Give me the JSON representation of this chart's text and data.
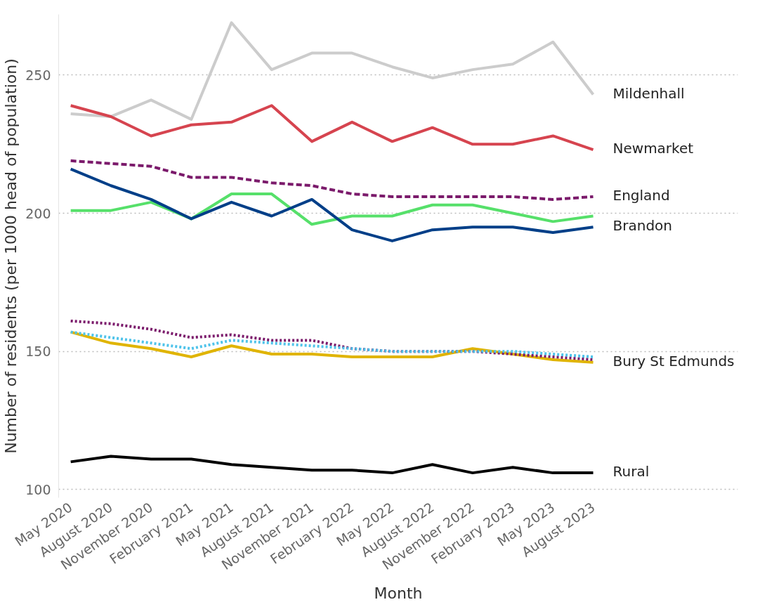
{
  "chart_data": {
    "type": "line",
    "xlabel": "Month",
    "ylabel": "Number of residents (per 1000 head of population)",
    "categories": [
      "May 2020",
      "August 2020",
      "November 2020",
      "February 2021",
      "May 2021",
      "August 2021",
      "November 2021",
      "February 2022",
      "May 2022",
      "August 2022",
      "November 2022",
      "February 2023",
      "May 2023",
      "August 2023"
    ],
    "ylim": [
      97,
      272
    ],
    "yticks": [
      100,
      150,
      200,
      250
    ],
    "grid": "y",
    "series": [
      {
        "name": "Mildenhall",
        "color": "#cccccc",
        "line_style": "solid",
        "values": [
          236,
          235,
          241,
          234,
          269,
          252,
          258,
          258,
          253,
          249,
          252,
          254,
          262,
          243
        ]
      },
      {
        "name": "Newmarket",
        "color": "#d6444f",
        "line_style": "solid",
        "values": [
          239,
          235,
          228,
          232,
          233,
          239,
          226,
          233,
          226,
          231,
          225,
          225,
          228,
          223
        ]
      },
      {
        "name": "England",
        "color": "#7b1a6b",
        "line_style": "dashed",
        "values": [
          219,
          218,
          217,
          213,
          213,
          211,
          210,
          207,
          206,
          206,
          206,
          206,
          205,
          206
        ]
      },
      {
        "color": "#56e06a",
        "line_style": "solid",
        "values": [
          201,
          201,
          204,
          198,
          207,
          207,
          196,
          199,
          199,
          203,
          203,
          200,
          197,
          199
        ]
      },
      {
        "name": "Brandon",
        "color": "#003f88",
        "line_style": "solid",
        "values": [
          216,
          210,
          205,
          198,
          204,
          199,
          205,
          194,
          190,
          194,
          195,
          195,
          193,
          195
        ]
      },
      {
        "name": "Bury St Edmunds",
        "color": "#e0b400",
        "line_style": "solid",
        "values": [
          157,
          153,
          151,
          148,
          152,
          149,
          149,
          148,
          148,
          148,
          151,
          149,
          147,
          146
        ]
      },
      {
        "color": "#7b1a6b",
        "line_style": "dotted",
        "values": [
          161,
          160,
          158,
          155,
          156,
          154,
          154,
          151,
          150,
          150,
          150,
          149,
          148,
          147
        ]
      },
      {
        "color": "#4fc3ea",
        "line_style": "dotted",
        "values": [
          157,
          155,
          153,
          151,
          154,
          153,
          152,
          151,
          150,
          150,
          150,
          150,
          149,
          148
        ]
      },
      {
        "name": "Rural",
        "color": "#000000",
        "line_style": "solid",
        "values": [
          110,
          112,
          111,
          111,
          109,
          108,
          107,
          107,
          106,
          109,
          106,
          108,
          106,
          106
        ]
      }
    ]
  }
}
